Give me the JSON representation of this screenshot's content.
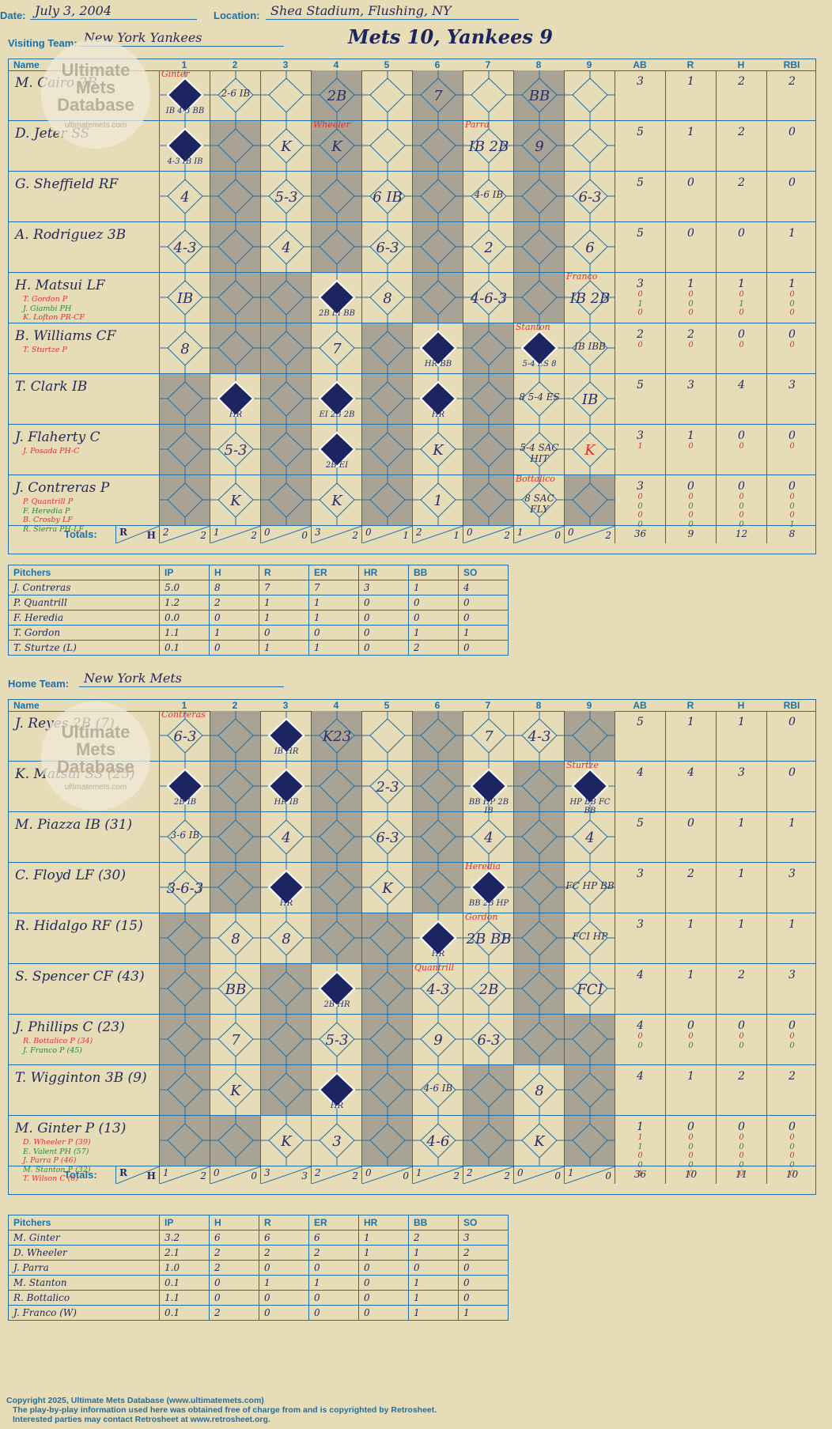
{
  "header": {
    "date_label": "Date:",
    "date": "July 3, 2004",
    "location_label": "Location:",
    "location": "Shea Stadium, Flushing, NY",
    "visiting_label": "Visiting Team:",
    "visiting_team": "New York Yankees",
    "home_label": "Home Team:",
    "home_team": "New York Mets",
    "title": "Mets 10, Yankees 9"
  },
  "watermark": {
    "line1": "Ultimate",
    "line2": "Mets",
    "line3": "Database",
    "url": "ultimatemets.com"
  },
  "grid_headers": {
    "name": "Name",
    "innings": [
      "1",
      "2",
      "3",
      "4",
      "5",
      "6",
      "7",
      "8",
      "9"
    ],
    "stats": [
      "AB",
      "R",
      "H",
      "RBI"
    ]
  },
  "colors": {
    "ink": "#232a5e",
    "blue": "#1f6fa8",
    "red": "#e03030",
    "green": "#2d8a2d",
    "gray": "#a8a394",
    "diamond": "#1c2560"
  },
  "visitors": [
    {
      "name": "M. Cairo 2B",
      "subs": [],
      "stats": [
        "3",
        "1",
        "2",
        "2"
      ],
      "sub_stats": [],
      "gray": [
        4,
        6,
        8
      ],
      "cells": {
        "1": {
          "d": 1,
          "n": "Ginter",
          "t": "IB  4-3 BB"
        },
        "2": {
          "p": "2-6 IB"
        },
        "4": {
          "p": "2B"
        },
        "6": {
          "p": "7"
        },
        "8": {
          "p": "BB"
        }
      }
    },
    {
      "name": "D. Jeter SS",
      "subs": [],
      "stats": [
        "5",
        "1",
        "2",
        "0"
      ],
      "sub_stats": [],
      "gray": [
        2,
        4,
        6,
        8
      ],
      "cells": {
        "1": {
          "d": 1,
          "t": "4-3 IB IB"
        },
        "3": {
          "p": "K"
        },
        "4": {
          "p": "K",
          "n": "Wheeler"
        },
        "7": {
          "p": "IB 2B",
          "n": "Parra"
        },
        "8": {
          "p": "9"
        }
      }
    },
    {
      "name": "G. Sheffield RF",
      "subs": [],
      "stats": [
        "5",
        "0",
        "2",
        "0"
      ],
      "sub_stats": [],
      "gray": [
        2,
        4,
        6,
        8
      ],
      "cells": {
        "1": {
          "p": "4"
        },
        "3": {
          "p": "5-3"
        },
        "5": {
          "p": "6 IB"
        },
        "7": {
          "p": "4-6 IB"
        },
        "9": {
          "p": "6-3"
        }
      }
    },
    {
      "name": "A. Rodriguez 3B",
      "subs": [],
      "stats": [
        "5",
        "0",
        "0",
        "1"
      ],
      "sub_stats": [],
      "gray": [
        2,
        4,
        6,
        8
      ],
      "cells": {
        "1": {
          "p": "4-3"
        },
        "3": {
          "p": "4"
        },
        "5": {
          "p": "6-3"
        },
        "7": {
          "p": "2"
        },
        "9": {
          "p": "6"
        }
      }
    },
    {
      "name": "H. Matsui LF",
      "subs": [
        "T. Gordon P",
        "J. Giambi PH",
        "K. Lofton PR-CF"
      ],
      "stats": [
        "3",
        "1",
        "1",
        "1"
      ],
      "sub_stats": [
        [
          "0",
          "0",
          "0",
          "0"
        ],
        [
          "1",
          "0",
          "1",
          "0"
        ],
        [
          "0",
          "0",
          "0",
          "0"
        ]
      ],
      "gray": [
        2,
        3,
        6,
        8
      ],
      "cells": {
        "1": {
          "p": "IB"
        },
        "4": {
          "d": 1,
          "t": "2B EI BB"
        },
        "5": {
          "p": "8"
        },
        "7": {
          "p": "4-6-3"
        },
        "9": {
          "p": "IB 2B",
          "n": "Franco"
        }
      }
    },
    {
      "name": "B. Williams CF",
      "subs": [
        "T. Sturtze P"
      ],
      "stats": [
        "2",
        "2",
        "0",
        "0"
      ],
      "sub_stats": [
        [
          "0",
          "0",
          "0",
          "0"
        ]
      ],
      "gray": [
        2,
        3,
        5,
        7
      ],
      "cells": {
        "1": {
          "p": "8"
        },
        "4": {
          "p": "7"
        },
        "6": {
          "d": 1,
          "t": "HR BB"
        },
        "8": {
          "d": 1,
          "n": "Stanton",
          "t": "5-4 ES 8"
        },
        "9": {
          "p": "IB IBB"
        }
      }
    },
    {
      "name": "T. Clark IB",
      "subs": [],
      "stats": [
        "5",
        "3",
        "4",
        "3"
      ],
      "sub_stats": [],
      "gray": [
        1,
        3,
        5,
        7
      ],
      "cells": {
        "2": {
          "d": 1,
          "t": "HR"
        },
        "4": {
          "d": 1,
          "t": "EI 2B 2B"
        },
        "6": {
          "d": 1,
          "t": "HR"
        },
        "8": {
          "p": "8 5-4 ES"
        },
        "9": {
          "p": "IB"
        }
      }
    },
    {
      "name": "J. Flaherty C",
      "subs": [
        "J. Posada PH-C"
      ],
      "stats": [
        "3",
        "1",
        "0",
        "0"
      ],
      "sub_stats": [
        [
          "1",
          "0",
          "0",
          "0"
        ]
      ],
      "gray": [
        1,
        3,
        5,
        7
      ],
      "cells": {
        "2": {
          "p": "5-3"
        },
        "4": {
          "d": 1,
          "t": "2B EI"
        },
        "6": {
          "p": "K"
        },
        "8": {
          "p": "5-4 SAC HIT"
        },
        "9": {
          "p": "K"
        }
      }
    },
    {
      "name": "J. Contreras P",
      "subs": [
        "P. Quantrill P",
        "F. Heredia P",
        "B. Crosby LF",
        "R. Sierra PH-LF"
      ],
      "stats": [
        "3",
        "0",
        "0",
        "0"
      ],
      "sub_stats": [
        [
          "0",
          "0",
          "0",
          "0"
        ],
        [
          "0",
          "0",
          "0",
          "0"
        ],
        [
          "0",
          "0",
          "0",
          "0"
        ],
        [
          "0",
          "0",
          "0",
          "1"
        ]
      ],
      "gray": [
        1,
        3,
        5,
        7,
        9
      ],
      "cells": {
        "2": {
          "p": "K"
        },
        "4": {
          "p": "K"
        },
        "6": {
          "p": "1"
        },
        "8": {
          "p": "8 SAC FLY",
          "n": "Bottalico"
        }
      }
    }
  ],
  "visitor_totals": {
    "label": "Totals:",
    "rh": "R  H",
    "innings": [
      [
        "2",
        "2"
      ],
      [
        "1",
        "2"
      ],
      [
        "0",
        "0"
      ],
      [
        "3",
        "2"
      ],
      [
        "0",
        "1"
      ],
      [
        "2",
        "1"
      ],
      [
        "0",
        "2"
      ],
      [
        "1",
        "0"
      ],
      [
        "0",
        "2"
      ]
    ],
    "stats": [
      "36",
      "9",
      "12",
      "8"
    ]
  },
  "visitor_pitchers": {
    "headers": [
      "Pitchers",
      "IP",
      "H",
      "R",
      "ER",
      "HR",
      "BB",
      "SO"
    ],
    "rows": [
      [
        "J. Contreras",
        "5.0",
        "8",
        "7",
        "7",
        "3",
        "1",
        "4"
      ],
      [
        "P. Quantrill",
        "1.2",
        "2",
        "1",
        "1",
        "0",
        "0",
        "0"
      ],
      [
        "F. Heredia",
        "0.0",
        "0",
        "1",
        "1",
        "0",
        "0",
        "0"
      ],
      [
        "T. Gordon",
        "1.1",
        "1",
        "0",
        "0",
        "0",
        "1",
        "1"
      ],
      [
        "T. Sturtze (L)",
        "0.1",
        "0",
        "1",
        "1",
        "0",
        "2",
        "0"
      ]
    ]
  },
  "home": [
    {
      "name": "J. Reyes 2B (7)",
      "subs": [],
      "stats": [
        "5",
        "1",
        "1",
        "0"
      ],
      "sub_stats": [],
      "gray": [
        2,
        4,
        6,
        9
      ],
      "cells": {
        "1": {
          "p": "6-3",
          "n": "Contreras"
        },
        "3": {
          "d": 1,
          "t": "IB HR"
        },
        "4": {
          "p": "K23"
        },
        "7": {
          "p": "7"
        },
        "8": {
          "p": "4-3"
        }
      }
    },
    {
      "name": "K. Matsui SS (25)",
      "subs": [],
      "stats": [
        "4",
        "4",
        "3",
        "0"
      ],
      "sub_stats": [],
      "gray": [
        2,
        4,
        6,
        8
      ],
      "cells": {
        "1": {
          "d": 1,
          "t": "2B IB"
        },
        "3": {
          "d": 1,
          "t": "HR IB"
        },
        "5": {
          "p": "2-3"
        },
        "7": {
          "d": 1,
          "t": "BB HP 2B IB"
        },
        "9": {
          "d": 1,
          "n": "Sturtze",
          "t": "HP BB FC BB"
        }
      }
    },
    {
      "name": "M. Piazza IB (31)",
      "subs": [],
      "stats": [
        "5",
        "0",
        "1",
        "1"
      ],
      "sub_stats": [],
      "gray": [
        2,
        4,
        6,
        8
      ],
      "cells": {
        "1": {
          "p": "3-6 IB"
        },
        "3": {
          "p": "4"
        },
        "5": {
          "p": "6-3"
        },
        "7": {
          "p": "4"
        },
        "9": {
          "p": "4"
        }
      }
    },
    {
      "name": "C. Floyd LF (30)",
      "subs": [],
      "stats": [
        "3",
        "2",
        "1",
        "3"
      ],
      "sub_stats": [],
      "gray": [
        2,
        4,
        6,
        8
      ],
      "cells": {
        "1": {
          "p": "3-6-3"
        },
        "3": {
          "d": 1,
          "t": "HR"
        },
        "5": {
          "p": "K"
        },
        "7": {
          "d": 1,
          "n": "Heredia",
          "t": "BB 2B HP"
        },
        "9": {
          "p": "FC HP BB"
        }
      }
    },
    {
      "name": "R. Hidalgo RF (15)",
      "subs": [],
      "stats": [
        "3",
        "1",
        "1",
        "1"
      ],
      "sub_stats": [],
      "gray": [
        1,
        4,
        5,
        8
      ],
      "cells": {
        "2": {
          "p": "8"
        },
        "3": {
          "p": "8"
        },
        "6": {
          "d": 1,
          "t": "HR"
        },
        "7": {
          "p": "2B BB",
          "n": "Gordon"
        },
        "9": {
          "p": "FCI HP"
        }
      }
    },
    {
      "name": "S. Spencer CF (43)",
      "subs": [],
      "stats": [
        "4",
        "1",
        "2",
        "3"
      ],
      "sub_stats": [],
      "gray": [
        1,
        3,
        5,
        8
      ],
      "cells": {
        "2": {
          "p": "BB"
        },
        "4": {
          "d": 1,
          "t": "2B HR"
        },
        "6": {
          "p": "4-3",
          "n": "Quantrill"
        },
        "7": {
          "p": "2B"
        },
        "9": {
          "p": "FCI"
        }
      }
    },
    {
      "name": "J. Phillips C (23)",
      "subs": [
        "R. Bottalico P (34)",
        "J. Franco P (45)"
      ],
      "stats": [
        "4",
        "0",
        "0",
        "0"
      ],
      "sub_stats": [
        [
          "0",
          "0",
          "0",
          "0"
        ],
        [
          "0",
          "0",
          "0",
          "0"
        ]
      ],
      "gray": [
        1,
        3,
        5,
        8,
        9
      ],
      "cells": {
        "2": {
          "p": "7"
        },
        "4": {
          "p": "5-3"
        },
        "6": {
          "p": "9"
        },
        "7": {
          "p": "6-3"
        }
      }
    },
    {
      "name": "T. Wigginton 3B (9)",
      "subs": [],
      "stats": [
        "4",
        "1",
        "2",
        "2"
      ],
      "sub_stats": [],
      "gray": [
        1,
        3,
        5,
        7,
        9
      ],
      "cells": {
        "2": {
          "p": "K"
        },
        "4": {
          "d": 1,
          "t": "HR"
        },
        "6": {
          "p": "4-6 IB"
        },
        "8": {
          "p": "8"
        }
      }
    },
    {
      "name": "M. Ginter P (13)",
      "subs": [
        "D. Wheeler P (39)",
        "E. Valent PH (57)",
        "J. Parra P (46)",
        "M. Stanton P (32)",
        "T. Wilson C (6)"
      ],
      "stats": [
        "1",
        "0",
        "0",
        "0"
      ],
      "sub_stats": [
        [
          "1",
          "0",
          "0",
          "0"
        ],
        [
          "1",
          "0",
          "0",
          "0"
        ],
        [
          "0",
          "0",
          "0",
          "0"
        ],
        [
          "0",
          "0",
          "0",
          "0"
        ],
        [
          "1",
          "0",
          "0",
          "0"
        ]
      ],
      "gray": [
        1,
        2,
        5,
        7,
        9
      ],
      "cells": {
        "3": {
          "p": "K"
        },
        "4": {
          "p": "3"
        },
        "6": {
          "p": "4-6"
        },
        "8": {
          "p": "K"
        }
      }
    }
  ],
  "home_totals": {
    "label": "Totals:",
    "rh": "R  H",
    "innings": [
      [
        "1",
        "2"
      ],
      [
        "0",
        "0"
      ],
      [
        "3",
        "3"
      ],
      [
        "2",
        "2"
      ],
      [
        "0",
        "0"
      ],
      [
        "1",
        "2"
      ],
      [
        "2",
        "2"
      ],
      [
        "0",
        "0"
      ],
      [
        "1",
        "0"
      ]
    ],
    "stats": [
      "36",
      "10",
      "11",
      "10"
    ]
  },
  "home_pitchers": {
    "headers": [
      "Pitchers",
      "IP",
      "H",
      "R",
      "ER",
      "HR",
      "BB",
      "SO"
    ],
    "rows": [
      [
        "M. Ginter",
        "3.2",
        "6",
        "6",
        "6",
        "1",
        "2",
        "3"
      ],
      [
        "D. Wheeler",
        "2.1",
        "2",
        "2",
        "2",
        "1",
        "1",
        "2"
      ],
      [
        "J. Parra",
        "1.0",
        "2",
        "0",
        "0",
        "0",
        "0",
        "0"
      ],
      [
        "M. Stanton",
        "0.1",
        "0",
        "1",
        "1",
        "0",
        "1",
        "0"
      ],
      [
        "R. Bottalico",
        "1.1",
        "0",
        "0",
        "0",
        "0",
        "1",
        "0"
      ],
      [
        "J. Franco (W)",
        "0.1",
        "2",
        "0",
        "0",
        "0",
        "1",
        "1"
      ]
    ]
  },
  "footer": {
    "line1": "Copyright 2025, Ultimate Mets Database (www.ultimatemets.com)",
    "line2": "The play-by-play information used here was obtained free of charge from and is copyrighted by Retrosheet.",
    "line3": "Interested parties may contact Retrosheet at www.retrosheet.org."
  }
}
